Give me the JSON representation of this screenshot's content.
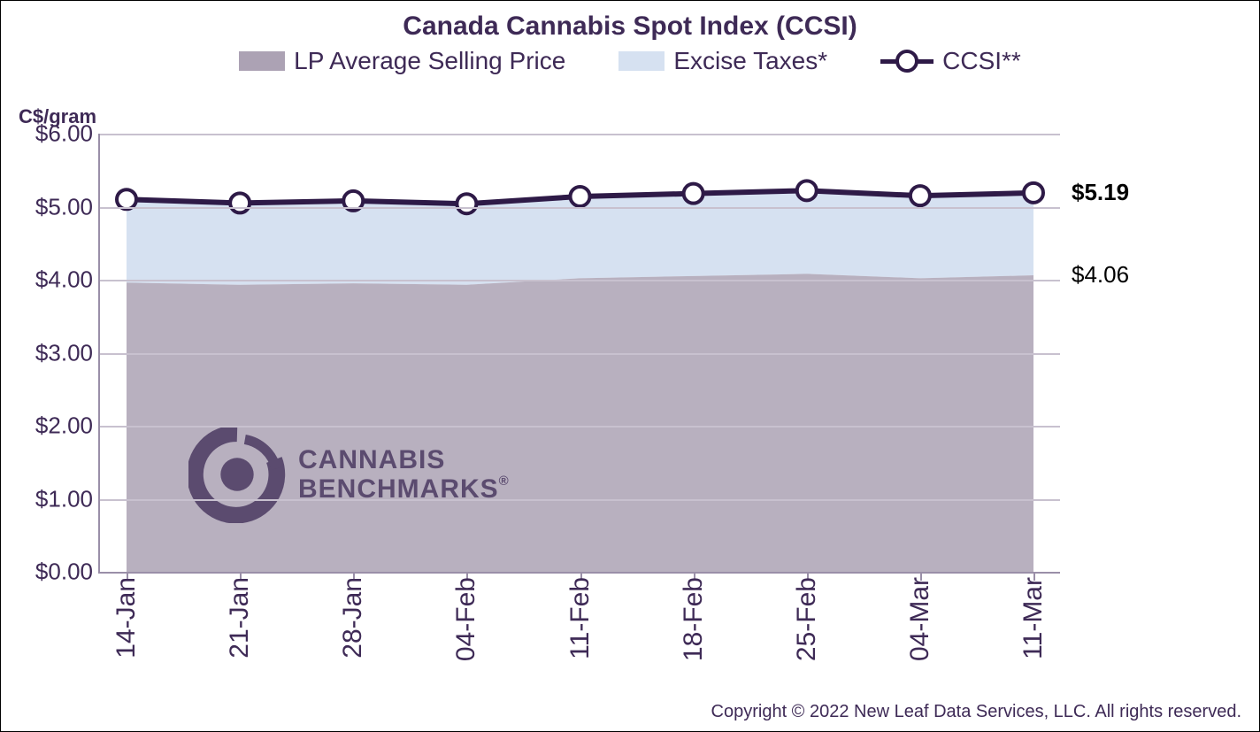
{
  "chart": {
    "type": "stacked-area-with-line",
    "title": "Canada Cannabis Spot Index (CCSI)",
    "title_fontsize": 30,
    "title_color": "#3e2a56",
    "y_axis_title": "C$/gram",
    "y_axis_title_fontsize": 22,
    "axis_font_color": "#3e2a56",
    "tick_fontsize": 26,
    "x_tick_fontsize": 30,
    "background_color": "#ffffff",
    "plot_border_color": "#9a8fa8",
    "grid_color": "#c8c1cf",
    "ylim": [
      0,
      6
    ],
    "ytick_step": 1,
    "y_tick_labels": [
      "$0.00",
      "$1.00",
      "$2.00",
      "$3.00",
      "$4.00",
      "$5.00",
      "$6.00"
    ],
    "categories": [
      "14-Jan",
      "21-Jan",
      "28-Jan",
      "04-Feb",
      "11-Feb",
      "18-Feb",
      "25-Feb",
      "04-Mar",
      "11-Mar"
    ],
    "series": {
      "lp_avg": {
        "label": "LP Average Selling Price",
        "type": "area",
        "color": "#aca2b4",
        "opacity": 0.85,
        "values": [
          3.96,
          3.93,
          3.95,
          3.93,
          4.02,
          4.05,
          4.08,
          4.02,
          4.06
        ]
      },
      "excise": {
        "label": "Excise Taxes*",
        "type": "area",
        "color": "#d6e1f1",
        "opacity": 1.0,
        "values_to_top": [
          5.1,
          5.05,
          5.08,
          5.04,
          5.14,
          5.18,
          5.22,
          5.15,
          5.19
        ]
      },
      "ccsi": {
        "label": "CCSI**",
        "type": "line",
        "line_color": "#2e1a47",
        "line_width": 6,
        "marker_fill": "#ffffff",
        "marker_stroke": "#2e1a47",
        "marker_stroke_width": 4,
        "marker_radius": 11,
        "values": [
          5.1,
          5.05,
          5.08,
          5.04,
          5.14,
          5.18,
          5.22,
          5.15,
          5.19
        ]
      }
    },
    "end_labels": {
      "ccsi": "$5.19",
      "lp": "$4.06",
      "fontsize": 26
    },
    "legend": {
      "fontsize": 28,
      "text_color": "#3e2a56"
    },
    "watermark": {
      "text_top": "CANNABIS",
      "text_bottom": "BENCHMARKS",
      "reg_mark": "®",
      "fontsize": 30,
      "color": "#4b3a62"
    },
    "copyright": {
      "text": "Copyright © 2022 New Leaf Data Services, LLC. All rights reserved.",
      "fontsize": 20,
      "color": "#3e2a56"
    }
  }
}
